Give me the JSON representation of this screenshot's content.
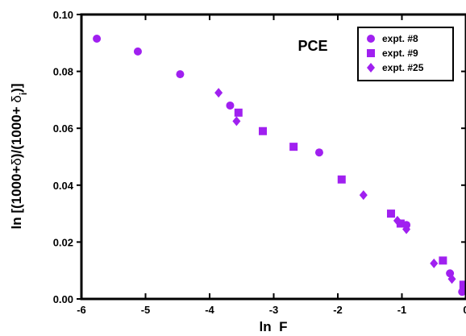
{
  "chart_data": {
    "type": "scatter",
    "xlabel": "ln  F",
    "ylabel_parts": [
      "ln [(1000+",
      "δ",
      ")/(1000+ ",
      "δ",
      "i",
      ")]"
    ],
    "annotation": "PCE",
    "xlim": [
      -6,
      0
    ],
    "ylim": [
      0.0,
      0.1
    ],
    "x_ticks": [
      -6,
      -5,
      -4,
      -3,
      -2,
      -1,
      0
    ],
    "x_tick_labels": [
      "-6",
      "-5",
      "-4",
      "-3",
      "-2",
      "-1",
      "0"
    ],
    "y_ticks": [
      0.0,
      0.02,
      0.04,
      0.06,
      0.08,
      0.1
    ],
    "y_tick_labels": [
      "0.00",
      "0.02",
      "0.04",
      "0.06",
      "0.08",
      "0.10"
    ],
    "grid": false,
    "legend_position": "top-right",
    "marker_color": "#a020f0",
    "series": [
      {
        "name": "expt. #8",
        "marker": "circle",
        "points": [
          {
            "x": -5.76,
            "y": 0.0915
          },
          {
            "x": -5.12,
            "y": 0.087
          },
          {
            "x": -4.46,
            "y": 0.079
          },
          {
            "x": -3.68,
            "y": 0.068
          },
          {
            "x": -2.29,
            "y": 0.0515
          },
          {
            "x": -0.93,
            "y": 0.026
          },
          {
            "x": -0.25,
            "y": 0.009
          },
          {
            "x": -0.06,
            "y": 0.0025
          }
        ]
      },
      {
        "name": "expt. #9",
        "marker": "square",
        "points": [
          {
            "x": -3.55,
            "y": 0.0655
          },
          {
            "x": -3.17,
            "y": 0.059
          },
          {
            "x": -2.69,
            "y": 0.0535
          },
          {
            "x": -1.94,
            "y": 0.042
          },
          {
            "x": -1.17,
            "y": 0.03
          },
          {
            "x": -1.02,
            "y": 0.0265
          },
          {
            "x": -0.36,
            "y": 0.0135
          },
          {
            "x": -0.04,
            "y": 0.005
          }
        ]
      },
      {
        "name": "expt. #25",
        "marker": "diamond",
        "points": [
          {
            "x": -3.86,
            "y": 0.0725
          },
          {
            "x": -3.58,
            "y": 0.0625
          },
          {
            "x": -1.6,
            "y": 0.0365
          },
          {
            "x": -1.07,
            "y": 0.0275
          },
          {
            "x": -0.93,
            "y": 0.0245
          },
          {
            "x": -0.5,
            "y": 0.0125
          },
          {
            "x": -0.22,
            "y": 0.007
          },
          {
            "x": -0.04,
            "y": 0.003
          }
        ]
      }
    ]
  }
}
